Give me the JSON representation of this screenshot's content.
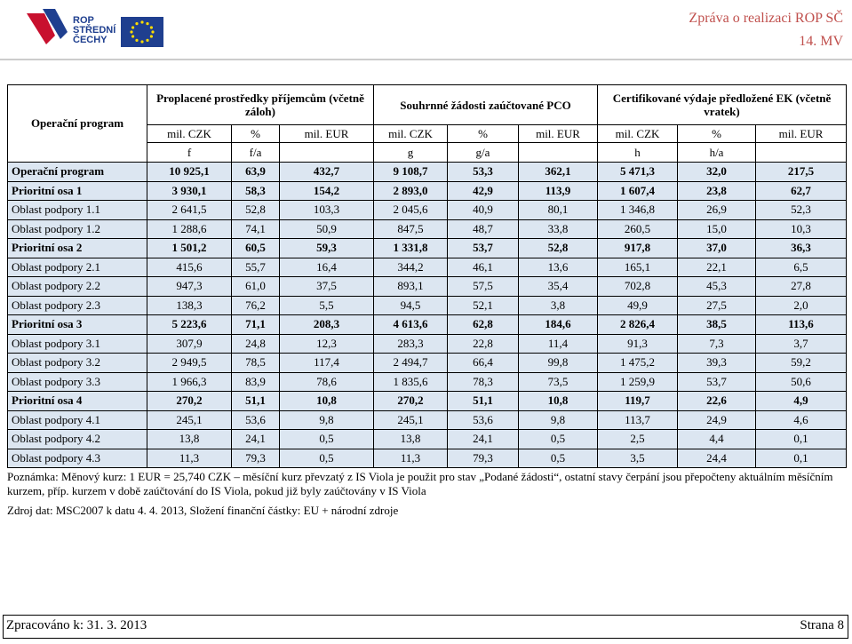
{
  "header": {
    "logo_text": [
      "ROP",
      "STŘEDNÍ",
      "ČECHY"
    ],
    "title": "Zpráva o realizaci ROP SČ",
    "subtitle": "14. MV"
  },
  "table": {
    "program_header": "Operační program",
    "groups": [
      "Proplacené prostředky příjemcům (včetně záloh)",
      "Souhrnné žádosti zaúčtované PCO",
      "Certifikované výdaje předložené EK (včetně vratek)"
    ],
    "units": [
      "mil. CZK",
      "%",
      "mil. EUR",
      "mil. CZK",
      "%",
      "mil. EUR",
      "mil. CZK",
      "%",
      "mil. EUR"
    ],
    "codes": [
      "f",
      "f/a",
      null,
      "g",
      "g/a",
      null,
      "h",
      "h/a",
      null
    ],
    "rows": [
      {
        "label": "Operační program",
        "bold": true,
        "values": [
          "10 925,1",
          "63,9",
          "432,7",
          "9 108,7",
          "53,3",
          "362,1",
          "5 471,3",
          "32,0",
          "217,5"
        ]
      },
      {
        "label": "Prioritní osa 1",
        "bold": true,
        "values": [
          "3 930,1",
          "58,3",
          "154,2",
          "2 893,0",
          "42,9",
          "113,9",
          "1 607,4",
          "23,8",
          "62,7"
        ]
      },
      {
        "label": "Oblast podpory 1.1",
        "bold": false,
        "values": [
          "2 641,5",
          "52,8",
          "103,3",
          "2 045,6",
          "40,9",
          "80,1",
          "1 346,8",
          "26,9",
          "52,3"
        ]
      },
      {
        "label": "Oblast podpory 1.2",
        "bold": false,
        "values": [
          "1 288,6",
          "74,1",
          "50,9",
          "847,5",
          "48,7",
          "33,8",
          "260,5",
          "15,0",
          "10,3"
        ]
      },
      {
        "label": "Prioritní osa 2",
        "bold": true,
        "values": [
          "1 501,2",
          "60,5",
          "59,3",
          "1 331,8",
          "53,7",
          "52,8",
          "917,8",
          "37,0",
          "36,3"
        ]
      },
      {
        "label": "Oblast podpory 2.1",
        "bold": false,
        "values": [
          "415,6",
          "55,7",
          "16,4",
          "344,2",
          "46,1",
          "13,6",
          "165,1",
          "22,1",
          "6,5"
        ]
      },
      {
        "label": "Oblast podpory 2.2",
        "bold": false,
        "values": [
          "947,3",
          "61,0",
          "37,5",
          "893,1",
          "57,5",
          "35,4",
          "702,8",
          "45,3",
          "27,8"
        ]
      },
      {
        "label": "Oblast podpory 2.3",
        "bold": false,
        "values": [
          "138,3",
          "76,2",
          "5,5",
          "94,5",
          "52,1",
          "3,8",
          "49,9",
          "27,5",
          "2,0"
        ]
      },
      {
        "label": "Prioritní osa 3",
        "bold": true,
        "values": [
          "5 223,6",
          "71,1",
          "208,3",
          "4 613,6",
          "62,8",
          "184,6",
          "2 826,4",
          "38,5",
          "113,6"
        ]
      },
      {
        "label": "Oblast podpory 3.1",
        "bold": false,
        "values": [
          "307,9",
          "24,8",
          "12,3",
          "283,3",
          "22,8",
          "11,4",
          "91,3",
          "7,3",
          "3,7"
        ]
      },
      {
        "label": "Oblast podpory 3.2",
        "bold": false,
        "values": [
          "2 949,5",
          "78,5",
          "117,4",
          "2 494,7",
          "66,4",
          "99,8",
          "1 475,2",
          "39,3",
          "59,2"
        ]
      },
      {
        "label": "Oblast podpory 3.3",
        "bold": false,
        "values": [
          "1 966,3",
          "83,9",
          "78,6",
          "1 835,6",
          "78,3",
          "73,5",
          "1 259,9",
          "53,7",
          "50,6"
        ]
      },
      {
        "label": "Prioritní osa 4",
        "bold": true,
        "values": [
          "270,2",
          "51,1",
          "10,8",
          "270,2",
          "51,1",
          "10,8",
          "119,7",
          "22,6",
          "4,9"
        ]
      },
      {
        "label": "Oblast podpory 4.1",
        "bold": false,
        "values": [
          "245,1",
          "53,6",
          "9,8",
          "245,1",
          "53,6",
          "9,8",
          "113,7",
          "24,9",
          "4,6"
        ]
      },
      {
        "label": "Oblast podpory 4.2",
        "bold": false,
        "values": [
          "13,8",
          "24,1",
          "0,5",
          "13,8",
          "24,1",
          "0,5",
          "2,5",
          "4,4",
          "0,1"
        ]
      },
      {
        "label": "Oblast podpory 4.3",
        "bold": false,
        "values": [
          "11,3",
          "79,3",
          "0,5",
          "11,3",
          "79,3",
          "0,5",
          "3,5",
          "24,4",
          "0,1"
        ]
      }
    ]
  },
  "notes": [
    "Poznámka: Měnový kurz: 1 EUR = 25,740 CZK – měsíční kurz převzatý z IS Viola je použit pro stav „Podané žádosti“, ostatní stavy čerpání jsou přepočteny aktuálním měsíčním kurzem, příp. kurzem v době zaúčtování do IS Viola, pokud již byly zaúčtovány v IS Viola",
    "Zdroj dat: MSC2007 k datu 4. 4. 2013, Složení finanční částky: EU + národní zdroje"
  ],
  "footer": {
    "processed": "Zpracováno k: 31. 3. 2013",
    "page": "Strana 8"
  }
}
